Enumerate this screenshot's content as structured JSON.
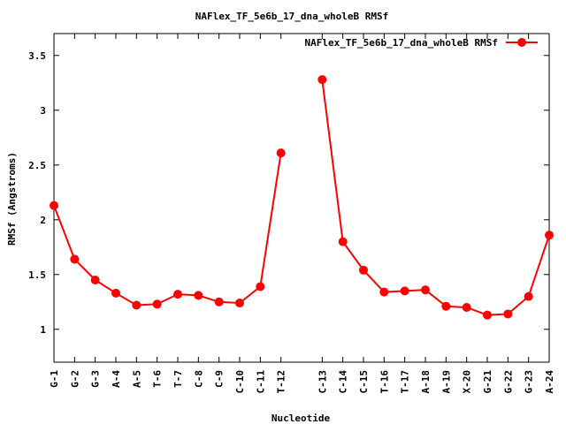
{
  "chart_data": {
    "type": "line",
    "title": "NAFlex_TF_5e6b_17_dna_wholeB RMSf",
    "xlabel": "Nucleotide",
    "ylabel": "RMSf (Angstroms)",
    "ylim": [
      0.7,
      3.7
    ],
    "yticks": [
      1,
      1.5,
      2,
      2.5,
      3,
      3.5
    ],
    "ytick_labels": [
      "1",
      "1.5",
      "2",
      "2.5",
      "3",
      "3.5"
    ],
    "grid": false,
    "legend": "top-right",
    "categories": [
      "G-1",
      "G-2",
      "G-3",
      "A-4",
      "A-5",
      "T-6",
      "T-7",
      "C-8",
      "C-9",
      "C-10",
      "C-11",
      "T-12",
      "C-13",
      "C-14",
      "C-15",
      "T-16",
      "T-17",
      "A-18",
      "A-19",
      "X-20",
      "G-21",
      "G-22",
      "G-23",
      "A-24"
    ],
    "x_positions": [
      1,
      2,
      3,
      4,
      5,
      6,
      7,
      8,
      9,
      10,
      11,
      12,
      14,
      15,
      16,
      17,
      18,
      19,
      20,
      21,
      22,
      23,
      24,
      25
    ],
    "xlim": [
      1,
      25
    ],
    "series": [
      {
        "name": "NAFlex_TF_5e6b_17_dna_wholeB RMSf",
        "color": "#ff0000",
        "segments": [
          [
            2.13,
            1.64,
            1.45,
            1.33,
            1.22,
            1.23,
            1.32,
            1.31,
            1.25,
            1.24,
            1.39,
            2.61
          ],
          [
            3.28,
            1.8,
            1.54,
            1.34,
            1.35,
            1.36,
            1.21,
            1.2,
            1.13,
            1.14,
            1.3,
            1.86
          ]
        ]
      }
    ]
  }
}
